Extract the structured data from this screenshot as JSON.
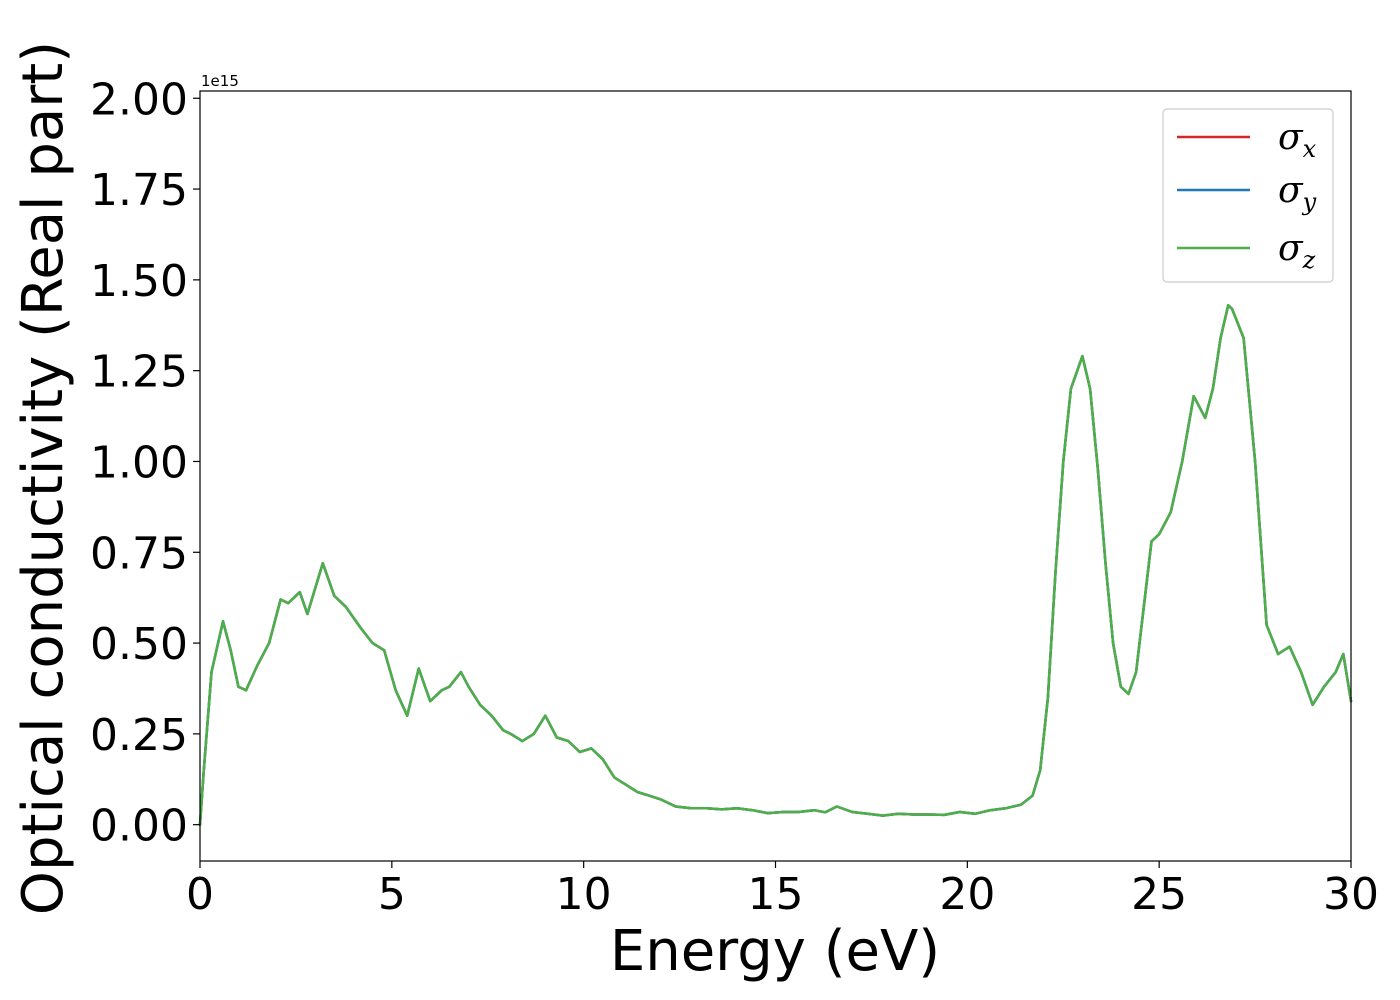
{
  "chart_data": {
    "type": "line",
    "title": "",
    "xlabel": "Energy (eV)",
    "ylabel": "Optical conductivity (Real part)",
    "y_offset_label": "1e15",
    "xlim": [
      0,
      30
    ],
    "ylim": [
      -0.1,
      2.02
    ],
    "x_ticks": [
      0,
      5,
      10,
      15,
      20,
      25,
      30
    ],
    "x_tick_labels": [
      "0",
      "5",
      "10",
      "15",
      "20",
      "25",
      "30"
    ],
    "y_ticks": [
      0.0,
      0.25,
      0.5,
      0.75,
      1.0,
      1.25,
      1.5,
      1.75,
      2.0
    ],
    "y_tick_labels": [
      "0.00",
      "0.25",
      "0.50",
      "0.75",
      "1.00",
      "1.25",
      "1.50",
      "1.75",
      "2.00"
    ],
    "grid": false,
    "legend_position": "top-right",
    "x": [
      0,
      0.1,
      0.3,
      0.6,
      0.8,
      1.0,
      1.2,
      1.5,
      1.8,
      2.1,
      2.3,
      2.6,
      2.8,
      3.2,
      3.5,
      3.8,
      4.2,
      4.5,
      4.8,
      5.1,
      5.4,
      5.7,
      6.0,
      6.3,
      6.5,
      6.8,
      7.0,
      7.3,
      7.6,
      7.9,
      8.1,
      8.4,
      8.7,
      9.0,
      9.3,
      9.6,
      9.9,
      10.2,
      10.5,
      10.8,
      11.1,
      11.4,
      11.7,
      12.0,
      12.4,
      12.8,
      13.2,
      13.6,
      14.0,
      14.4,
      14.8,
      15.2,
      15.6,
      16.0,
      16.3,
      16.6,
      17.0,
      17.4,
      17.8,
      18.2,
      18.6,
      19.0,
      19.4,
      19.8,
      20.2,
      20.6,
      21.0,
      21.4,
      21.7,
      21.9,
      22.1,
      22.3,
      22.5,
      22.7,
      23.0,
      23.2,
      23.4,
      23.6,
      23.8,
      24.0,
      24.2,
      24.4,
      24.6,
      24.8,
      25.0,
      25.3,
      25.6,
      25.9,
      26.2,
      26.4,
      26.6,
      26.8,
      26.9,
      27.2,
      27.5,
      27.8,
      28.1,
      28.4,
      28.7,
      29.0,
      29.3,
      29.6,
      29.8,
      30.0
    ],
    "series": [
      {
        "name": "σx",
        "label_base": "σ",
        "label_sub": "x",
        "color": "#d62728",
        "values": [
          0.0,
          0.15,
          0.42,
          0.56,
          0.48,
          0.38,
          0.37,
          0.44,
          0.5,
          0.62,
          0.61,
          0.64,
          0.58,
          0.72,
          0.63,
          0.6,
          0.54,
          0.5,
          0.48,
          0.37,
          0.3,
          0.43,
          0.34,
          0.37,
          0.38,
          0.42,
          0.38,
          0.33,
          0.3,
          0.26,
          0.25,
          0.23,
          0.25,
          0.3,
          0.24,
          0.23,
          0.2,
          0.21,
          0.18,
          0.13,
          0.11,
          0.09,
          0.08,
          0.07,
          0.05,
          0.045,
          0.045,
          0.042,
          0.045,
          0.04,
          0.032,
          0.035,
          0.035,
          0.04,
          0.034,
          0.05,
          0.035,
          0.03,
          0.025,
          0.03,
          0.028,
          0.028,
          0.027,
          0.035,
          0.03,
          0.04,
          0.045,
          0.055,
          0.08,
          0.15,
          0.35,
          0.7,
          1.0,
          1.2,
          1.29,
          1.2,
          0.98,
          0.72,
          0.5,
          0.38,
          0.36,
          0.42,
          0.6,
          0.78,
          0.8,
          0.86,
          1.0,
          1.18,
          1.12,
          1.2,
          1.34,
          1.43,
          1.42,
          1.34,
          1.0,
          0.55,
          0.47,
          0.49,
          0.42,
          0.33,
          0.38,
          0.42,
          0.47,
          0.34
        ]
      },
      {
        "name": "σy",
        "label_base": "σ",
        "label_sub": "y",
        "color": "#1f77b4",
        "values": [
          0.0,
          0.15,
          0.42,
          0.56,
          0.48,
          0.38,
          0.37,
          0.44,
          0.5,
          0.62,
          0.61,
          0.64,
          0.58,
          0.72,
          0.63,
          0.6,
          0.54,
          0.5,
          0.48,
          0.37,
          0.3,
          0.43,
          0.34,
          0.37,
          0.38,
          0.42,
          0.38,
          0.33,
          0.3,
          0.26,
          0.25,
          0.23,
          0.25,
          0.3,
          0.24,
          0.23,
          0.2,
          0.21,
          0.18,
          0.13,
          0.11,
          0.09,
          0.08,
          0.07,
          0.05,
          0.045,
          0.045,
          0.042,
          0.045,
          0.04,
          0.032,
          0.035,
          0.035,
          0.04,
          0.034,
          0.05,
          0.035,
          0.03,
          0.025,
          0.03,
          0.028,
          0.028,
          0.027,
          0.035,
          0.03,
          0.04,
          0.045,
          0.055,
          0.08,
          0.15,
          0.35,
          0.7,
          1.0,
          1.2,
          1.29,
          1.2,
          0.98,
          0.72,
          0.5,
          0.38,
          0.36,
          0.42,
          0.6,
          0.78,
          0.8,
          0.86,
          1.0,
          1.18,
          1.12,
          1.2,
          1.34,
          1.43,
          1.42,
          1.34,
          1.0,
          0.55,
          0.47,
          0.49,
          0.42,
          0.33,
          0.38,
          0.42,
          0.47,
          0.34
        ]
      },
      {
        "name": "σz",
        "label_base": "σ",
        "label_sub": "z",
        "color": "#4daf4a",
        "values": [
          0.0,
          0.15,
          0.42,
          0.56,
          0.48,
          0.38,
          0.37,
          0.44,
          0.5,
          0.62,
          0.61,
          0.64,
          0.58,
          0.72,
          0.63,
          0.6,
          0.54,
          0.5,
          0.48,
          0.37,
          0.3,
          0.43,
          0.34,
          0.37,
          0.38,
          0.42,
          0.38,
          0.33,
          0.3,
          0.26,
          0.25,
          0.23,
          0.25,
          0.3,
          0.24,
          0.23,
          0.2,
          0.21,
          0.18,
          0.13,
          0.11,
          0.09,
          0.08,
          0.07,
          0.05,
          0.045,
          0.045,
          0.042,
          0.045,
          0.04,
          0.032,
          0.035,
          0.035,
          0.04,
          0.034,
          0.05,
          0.035,
          0.03,
          0.025,
          0.03,
          0.028,
          0.028,
          0.027,
          0.035,
          0.03,
          0.04,
          0.045,
          0.055,
          0.08,
          0.15,
          0.35,
          0.7,
          1.0,
          1.2,
          1.29,
          1.2,
          0.98,
          0.72,
          0.5,
          0.38,
          0.36,
          0.42,
          0.6,
          0.78,
          0.8,
          0.86,
          1.0,
          1.18,
          1.12,
          1.2,
          1.34,
          1.43,
          1.42,
          1.34,
          1.0,
          0.55,
          0.47,
          0.49,
          0.42,
          0.33,
          0.38,
          0.42,
          0.47,
          0.34
        ]
      }
    ]
  }
}
